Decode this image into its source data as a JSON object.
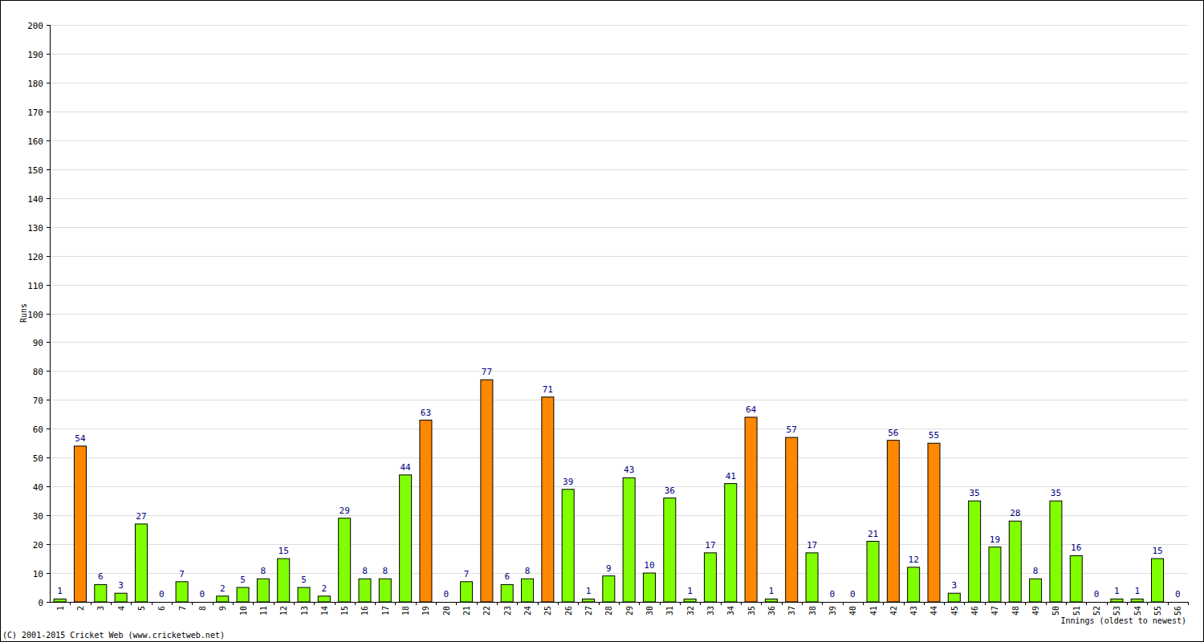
{
  "chart_data": {
    "type": "bar",
    "x_label": "Innings (oldest to newest)",
    "y_label": "Runs",
    "annotations": [
      "(C) 2001-2015 Cricket Web (www.cricketweb.net)"
    ],
    "categories": [
      "1",
      "2",
      "3",
      "4",
      "5",
      "6",
      "7",
      "8",
      "9",
      "10",
      "11",
      "12",
      "13",
      "14",
      "15",
      "16",
      "17",
      "18",
      "19",
      "20",
      "21",
      "22",
      "23",
      "24",
      "25",
      "26",
      "27",
      "28",
      "29",
      "30",
      "31",
      "32",
      "33",
      "34",
      "35",
      "36",
      "37",
      "38",
      "39",
      "40",
      "41",
      "42",
      "43",
      "44",
      "45",
      "46",
      "47",
      "48",
      "49",
      "50",
      "51",
      "52",
      "53",
      "54",
      "55",
      "56"
    ],
    "values": [
      1,
      54,
      6,
      3,
      27,
      0,
      7,
      0,
      2,
      5,
      8,
      15,
      5,
      2,
      29,
      8,
      8,
      44,
      63,
      0,
      7,
      77,
      6,
      8,
      71,
      39,
      1,
      9,
      43,
      10,
      36,
      1,
      17,
      41,
      64,
      1,
      57,
      17,
      0,
      0,
      21,
      56,
      12,
      55,
      3,
      35,
      19,
      28,
      8,
      35,
      16,
      0,
      1,
      1,
      15,
      0
    ],
    "colors": [
      "#80ff00",
      "#ff8800",
      "#80ff00",
      "#80ff00",
      "#80ff00",
      "#80ff00",
      "#80ff00",
      "#80ff00",
      "#80ff00",
      "#80ff00",
      "#80ff00",
      "#80ff00",
      "#80ff00",
      "#80ff00",
      "#80ff00",
      "#80ff00",
      "#80ff00",
      "#80ff00",
      "#ff8800",
      "#80ff00",
      "#80ff00",
      "#ff8800",
      "#80ff00",
      "#80ff00",
      "#ff8800",
      "#80ff00",
      "#80ff00",
      "#80ff00",
      "#80ff00",
      "#80ff00",
      "#80ff00",
      "#80ff00",
      "#80ff00",
      "#80ff00",
      "#ff8800",
      "#80ff00",
      "#ff8800",
      "#80ff00",
      "#80ff00",
      "#80ff00",
      "#80ff00",
      "#ff8800",
      "#80ff00",
      "#ff8800",
      "#80ff00",
      "#80ff00",
      "#80ff00",
      "#80ff00",
      "#80ff00",
      "#80ff00",
      "#80ff00",
      "#80ff00",
      "#80ff00",
      "#80ff00",
      "#80ff00",
      "#80ff00"
    ],
    "ylim": [
      0,
      200
    ],
    "yticks": [
      0,
      10,
      20,
      30,
      40,
      50,
      60,
      70,
      80,
      90,
      100,
      110,
      120,
      130,
      140,
      150,
      160,
      170,
      180,
      190,
      200
    ],
    "grid": true,
    "data_labels": true
  }
}
